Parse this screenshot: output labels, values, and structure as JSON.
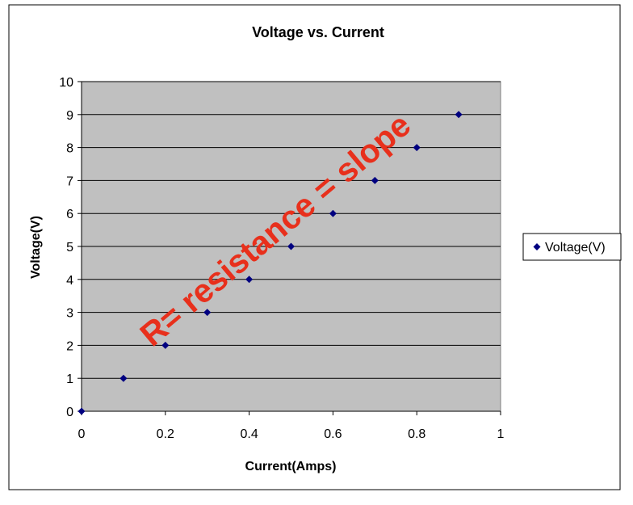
{
  "chart_data": {
    "type": "scatter",
    "title": "Voltage vs. Current",
    "xlabel": "Current(Amps)",
    "ylabel": "Voltage(V)",
    "xlim": [
      0,
      1
    ],
    "ylim": [
      0,
      10
    ],
    "x_ticks": [
      "0",
      "0.2",
      "0.4",
      "0.6",
      "0.8",
      "1"
    ],
    "y_ticks": [
      "0",
      "1",
      "2",
      "3",
      "4",
      "5",
      "6",
      "7",
      "8",
      "9",
      "10"
    ],
    "grid": "horizontal",
    "legend_position": "right",
    "series": [
      {
        "name": "Voltage(V)",
        "color": "#000080",
        "marker": "diamond",
        "x": [
          0,
          0.1,
          0.2,
          0.3,
          0.4,
          0.5,
          0.6,
          0.7,
          0.8,
          0.9
        ],
        "y": [
          0,
          1,
          2,
          3,
          4,
          5,
          6,
          7,
          8,
          9
        ]
      }
    ],
    "annotation": {
      "text": "R= resistance = slope",
      "color": "#e8301c"
    },
    "plot_background": "#c0c0c0"
  }
}
